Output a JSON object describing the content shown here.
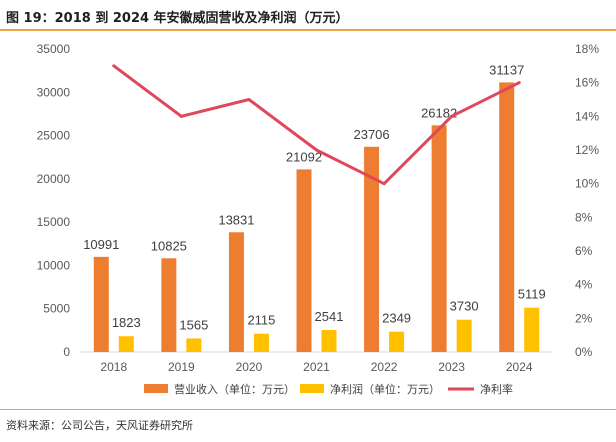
{
  "header": {
    "title": "图 19：2018 到 2024 年安徽威固营收及净利润（万元）"
  },
  "footer": {
    "source": "资料来源：公司公告，天风证券研究所"
  },
  "colors": {
    "revenue": "#ed7d31",
    "profit": "#ffc000",
    "margin": "#e0475c",
    "accent_rule": "#f0a14c"
  },
  "chart_data": {
    "type": "bar",
    "title": "2018 到 2024 年安徽威固营收及净利润（万元）",
    "categories": [
      "2018",
      "2019",
      "2020",
      "2021",
      "2022",
      "2023",
      "2024"
    ],
    "series": [
      {
        "name": "营业收入（单位：万元）",
        "kind": "bar",
        "axis": "left",
        "values": [
          10991,
          10825,
          13831,
          21092,
          23706,
          26182,
          31137
        ]
      },
      {
        "name": "净利润（单位：万元）",
        "kind": "bar",
        "axis": "left",
        "values": [
          1823,
          1565,
          2115,
          2541,
          2349,
          3730,
          5119
        ]
      },
      {
        "name": "净利率",
        "kind": "line",
        "axis": "right",
        "values": [
          0.17,
          0.14,
          0.15,
          0.12,
          0.1,
          0.14,
          0.16
        ]
      }
    ],
    "y_left": {
      "min": 0,
      "max": 35000,
      "step": 5000,
      "ticks": [
        "0",
        "5000",
        "10000",
        "15000",
        "20000",
        "25000",
        "30000",
        "35000"
      ]
    },
    "y_right": {
      "min": 0,
      "max": 0.18,
      "step": 0.02,
      "ticks": [
        "0%",
        "2%",
        "4%",
        "6%",
        "8%",
        "10%",
        "12%",
        "14%",
        "16%",
        "18%"
      ]
    },
    "legend": [
      "营业收入（单位：万元）",
      "净利润（单位：万元）",
      "净利率"
    ],
    "legend_position": "bottom",
    "grid": false
  }
}
